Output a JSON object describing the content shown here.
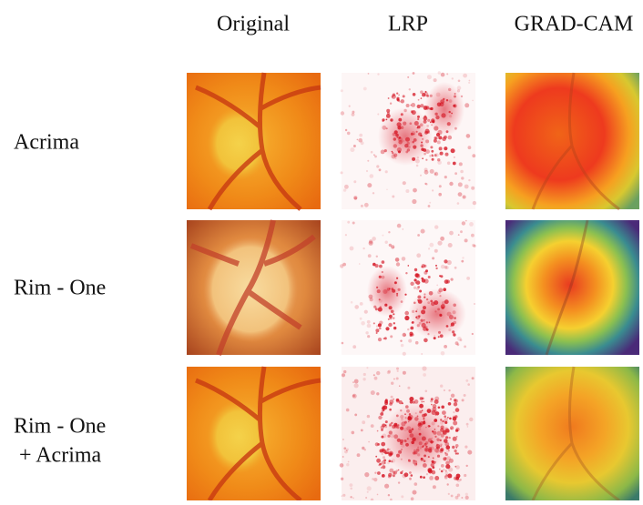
{
  "columns": [
    "Original",
    "LRP",
    "GRAD-CAM"
  ],
  "rows": [
    {
      "label_lines": [
        "Acrima"
      ]
    },
    {
      "label_lines": [
        "Rim - One"
      ]
    },
    {
      "label_lines": [
        "Rim - One",
        "+ Acrima"
      ]
    }
  ]
}
